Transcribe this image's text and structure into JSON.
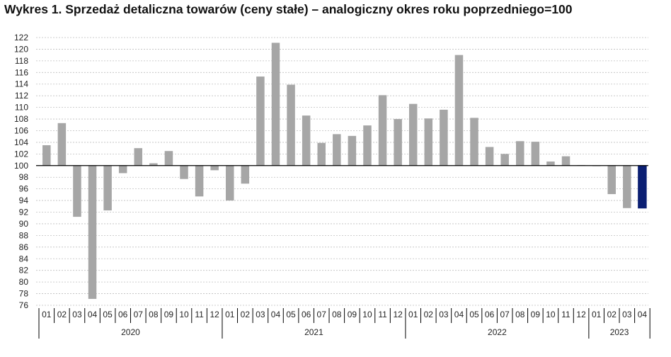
{
  "title": "Wykres 1. Sprzedaż detaliczna towarów (ceny stałe) – analogiczny okres roku poprzedniego=100",
  "colors": {
    "bar": "#a6a6a6",
    "highlight": "#0b1f73",
    "grid": "#bfbfbf",
    "axis": "#000000"
  },
  "chart_data": {
    "type": "bar",
    "baseline": 100,
    "ylim": [
      76,
      122
    ],
    "yticks": [
      76,
      78,
      80,
      82,
      84,
      86,
      88,
      90,
      92,
      94,
      96,
      98,
      100,
      102,
      104,
      106,
      108,
      110,
      112,
      114,
      116,
      118,
      120,
      122
    ],
    "grid": true,
    "legend": "none",
    "highlight_index": 39,
    "years": [
      {
        "label": "2020",
        "months": [
          "01",
          "02",
          "03",
          "04",
          "05",
          "06",
          "07",
          "08",
          "09",
          "10",
          "11",
          "12"
        ]
      },
      {
        "label": "2021",
        "months": [
          "01",
          "02",
          "03",
          "04",
          "05",
          "06",
          "07",
          "08",
          "09",
          "10",
          "11",
          "12"
        ]
      },
      {
        "label": "2022",
        "months": [
          "01",
          "02",
          "03",
          "04",
          "05",
          "06",
          "07",
          "08",
          "09",
          "10",
          "11",
          "12"
        ]
      },
      {
        "label": "2023",
        "months": [
          "01",
          "02",
          "03",
          "04"
        ]
      }
    ],
    "values": [
      103.5,
      107.3,
      91.2,
      77.1,
      92.3,
      98.7,
      103.0,
      100.4,
      102.5,
      97.7,
      94.7,
      99.2,
      94.0,
      96.9,
      115.3,
      121.1,
      113.9,
      108.6,
      103.9,
      105.4,
      105.1,
      106.9,
      112.1,
      108.0,
      110.6,
      108.1,
      109.6,
      119.0,
      108.2,
      103.2,
      102.0,
      104.2,
      104.1,
      100.7,
      101.6,
      100.1,
      100.0,
      95.1,
      92.7,
      92.7
    ]
  }
}
